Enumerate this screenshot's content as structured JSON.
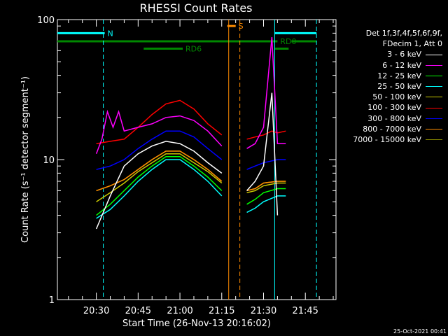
{
  "chart_data": {
    "type": "line",
    "title": "RHESSI Count Rates",
    "xlabel": "Start Time (26-Nov-13 20:16:02)",
    "ylabel": "Count Rate (s⁻¹ detector segment⁻¹)",
    "yscale": "log",
    "ylim": [
      1,
      100
    ],
    "xlim_minutes_of_day": [
      1216.03,
      1316
    ],
    "x_ticks": [
      "20:30",
      "20:45",
      "21:00",
      "21:15",
      "21:30",
      "21:45"
    ],
    "y_ticks": [
      "1",
      "10",
      "100"
    ],
    "legend_header": [
      "Det 1f,3f,4f,5f,6f,9f,",
      "FDecim 1, Att 0"
    ],
    "legend_placement": "right",
    "series": [
      {
        "name": "3 - 6 keV",
        "color": "#ffffff",
        "x": [
          "20:30",
          "20:35",
          "20:40",
          "20:45",
          "20:50",
          "20:55",
          "21:00",
          "21:05",
          "21:10",
          "21:15",
          "21:24",
          "21:27",
          "21:30",
          "21:33",
          "21:35"
        ],
        "y": [
          3.2,
          5.5,
          9.0,
          11.0,
          12.5,
          13.5,
          13.0,
          11.5,
          9.5,
          8.0,
          6.0,
          7.0,
          9.0,
          30,
          4.0
        ]
      },
      {
        "name": "6 - 12 keV",
        "color": "#ff00ff",
        "x": [
          "20:30",
          "20:32",
          "20:34",
          "20:36",
          "20:38",
          "20:40",
          "20:45",
          "20:50",
          "20:55",
          "21:00",
          "21:05",
          "21:10",
          "21:15",
          "21:24",
          "21:27",
          "21:30",
          "21:33",
          "21:35",
          "21:38"
        ],
        "y": [
          11.0,
          14.0,
          22.0,
          17.0,
          22.0,
          16.0,
          17.0,
          18.0,
          20.0,
          20.5,
          19.0,
          16.0,
          12.5,
          12.0,
          13.0,
          17.0,
          75.0,
          13.0,
          13.0
        ]
      },
      {
        "name": "12 - 25 keV",
        "color": "#00ff00",
        "x": [
          "20:30",
          "20:35",
          "20:40",
          "20:45",
          "20:50",
          "20:55",
          "21:00",
          "21:05",
          "21:10",
          "21:15",
          "21:24",
          "21:27",
          "21:30",
          "21:35",
          "21:38"
        ],
        "y": [
          4.0,
          4.8,
          6.0,
          7.5,
          9.0,
          10.5,
          10.5,
          9.0,
          7.5,
          6.0,
          4.8,
          5.2,
          5.8,
          6.2,
          6.2
        ]
      },
      {
        "name": "25 - 50 keV",
        "color": "#00ffff",
        "x": [
          "20:30",
          "20:35",
          "20:40",
          "20:45",
          "20:50",
          "20:55",
          "21:00",
          "21:05",
          "21:10",
          "21:15",
          "21:24",
          "21:27",
          "21:30",
          "21:35",
          "21:38"
        ],
        "y": [
          3.8,
          4.4,
          5.5,
          7.0,
          8.5,
          10.0,
          10.0,
          8.5,
          7.0,
          5.5,
          4.2,
          4.5,
          5.0,
          5.5,
          5.5
        ]
      },
      {
        "name": "50 - 100 keV",
        "color": "#c8c800",
        "x": [
          "20:30",
          "20:35",
          "20:40",
          "20:45",
          "20:50",
          "20:55",
          "21:00",
          "21:05",
          "21:10",
          "21:15",
          "21:24",
          "21:27",
          "21:30",
          "21:35",
          "21:38"
        ],
        "y": [
          5.0,
          5.8,
          6.8,
          8.2,
          9.5,
          11.0,
          11.0,
          9.5,
          8.2,
          6.8,
          5.8,
          6.0,
          6.5,
          6.8,
          6.8
        ]
      },
      {
        "name": "100 - 300 keV",
        "color": "#ff0000",
        "x": [
          "20:30",
          "20:35",
          "20:40",
          "20:45",
          "20:50",
          "20:55",
          "21:00",
          "21:05",
          "21:10",
          "21:15",
          "21:24",
          "21:27",
          "21:30",
          "21:33",
          "21:35",
          "21:38"
        ],
        "y": [
          13.0,
          13.5,
          14.0,
          17.0,
          21.0,
          25.0,
          26.5,
          23.0,
          18.0,
          15.0,
          14.0,
          14.5,
          15.0,
          16.0,
          15.5,
          16.0
        ]
      },
      {
        "name": "300 - 800 keV",
        "color": "#0000ff",
        "x": [
          "20:30",
          "20:35",
          "20:40",
          "20:45",
          "20:50",
          "20:55",
          "21:00",
          "21:05",
          "21:10",
          "21:15",
          "21:24",
          "21:27",
          "21:30",
          "21:35",
          "21:38"
        ],
        "y": [
          8.5,
          9.0,
          10.0,
          12.0,
          14.0,
          16.0,
          16.0,
          14.5,
          12.0,
          10.0,
          8.5,
          9.0,
          9.5,
          10.0,
          10.0
        ]
      },
      {
        "name": "800 - 7000 keV",
        "color": "#ff8c00",
        "x": [
          "20:30",
          "20:35",
          "20:40",
          "20:45",
          "20:50",
          "20:55",
          "21:00",
          "21:05",
          "21:10",
          "21:15",
          "21:24",
          "21:27",
          "21:30",
          "21:35",
          "21:38"
        ],
        "y": [
          6.0,
          6.5,
          7.2,
          8.5,
          10.0,
          11.5,
          11.5,
          10.0,
          8.5,
          7.0,
          6.0,
          6.2,
          6.8,
          7.0,
          7.0
        ]
      },
      {
        "name": "7000 - 15000 keV",
        "color": "#888800",
        "x": [
          "20:30",
          "20:35",
          "20:40",
          "20:45",
          "20:50",
          "20:55",
          "21:00",
          "21:05",
          "21:10",
          "21:15",
          "21:24",
          "21:27",
          "21:30",
          "21:35",
          "21:38"
        ],
        "y": [
          6.0,
          6.5,
          7.2,
          8.5,
          10.0,
          11.5,
          11.5,
          10.0,
          8.5,
          7.0,
          6.0,
          6.2,
          6.8,
          7.0,
          7.0
        ]
      }
    ],
    "annotations": [
      {
        "type": "flag_bar",
        "label": "N",
        "color": "#00ffff",
        "y": 80,
        "x": [
          [
            "20:16",
            "20:33"
          ],
          [
            "21:34",
            "21:49"
          ]
        ]
      },
      {
        "type": "flag_bar",
        "label": "S",
        "color": "#ff8c00",
        "y": 90,
        "x": [
          [
            "21:17",
            "21:20"
          ]
        ]
      },
      {
        "type": "flag_bar",
        "label": "RD0",
        "color": "#008800",
        "y": 70,
        "x": [
          [
            "20:16",
            "21:35"
          ],
          [
            "21:40",
            "21:49"
          ]
        ]
      },
      {
        "type": "flag_bar",
        "label": "RD6",
        "color": "#008800",
        "y": 62,
        "x": [
          [
            "20:47",
            "21:01"
          ],
          [
            "21:34",
            "21:39"
          ]
        ]
      },
      {
        "type": "vline",
        "color": "#00ffff",
        "style": "dashed",
        "x": "20:32.5"
      },
      {
        "type": "vline",
        "color": "#00ffff",
        "style": "dashed",
        "x": "21:49"
      },
      {
        "type": "vline",
        "color": "#00ffff",
        "style": "solid",
        "x": "21:34"
      },
      {
        "type": "vline",
        "color": "#ff8c00",
        "style": "solid",
        "x": "21:17.5"
      },
      {
        "type": "vline",
        "color": "#ff8c00",
        "style": "dashed",
        "x": "21:21.5"
      }
    ]
  },
  "footer": "25-Oct-2021 00:41"
}
